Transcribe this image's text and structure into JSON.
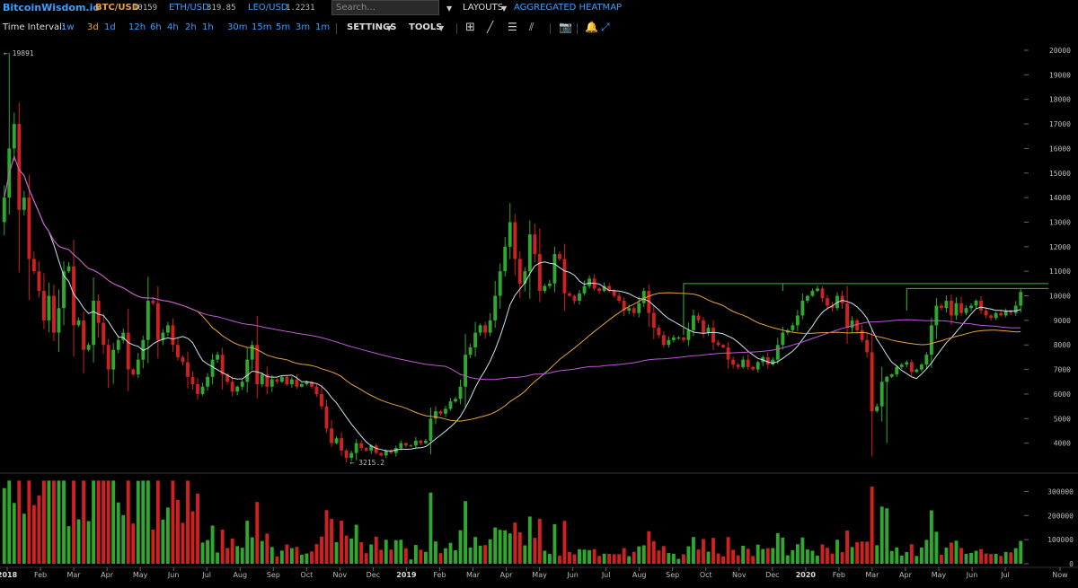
{
  "header": {
    "brand": "BitcoinWisdom.io",
    "tickers": [
      {
        "pair": "BTC/USD",
        "price": "10159"
      },
      {
        "pair": "ETH/USD",
        "price": "319.85"
      },
      {
        "pair": "LEO/USD",
        "price": "1.2231"
      }
    ],
    "search_placeholder": "Search...",
    "layouts_label": "LAYOUTS",
    "heatmap_label": "AGGREGATED HEATMAP"
  },
  "toolbar": {
    "time_interval_label": "Time Interval:",
    "intervals": [
      "1w",
      "3d",
      "1d",
      "12h",
      "6h",
      "4h",
      "2h",
      "1h",
      "30m",
      "15m",
      "5m",
      "3m",
      "1m"
    ],
    "active_interval": "3d",
    "settings_label": "SETTINGS",
    "tools_label": "TOOLS"
  },
  "chart_data": {
    "type": "candlestick",
    "pair": "BTC/USD",
    "interval": "3d",
    "colors": {
      "up": "#2fa82f",
      "down": "#d02020",
      "ma_short": "#c8e4f0",
      "ma_mid": "#e8a33a",
      "ma_long": "#c058d8",
      "resistance": "#3cb83c"
    },
    "price_axis": {
      "ticks": [
        20000,
        19000,
        18000,
        17000,
        16000,
        15000,
        14000,
        13000,
        12000,
        11000,
        10000,
        9000,
        8000,
        7000,
        6000,
        5000,
        4000
      ],
      "range": [
        3000,
        20000
      ]
    },
    "volume_axis": {
      "ticks": [
        300000,
        200000,
        100000,
        0
      ],
      "range": [
        0,
        350000
      ]
    },
    "time_labels": [
      "2018",
      "Feb",
      "Mar",
      "Apr",
      "May",
      "Jun",
      "Jul",
      "Aug",
      "Sep",
      "Oct",
      "Nov",
      "Dec",
      "2019",
      "Feb",
      "Mar",
      "Apr",
      "May",
      "Jun",
      "Jul",
      "Aug",
      "Sep",
      "Oct",
      "Nov",
      "Dec",
      "2020",
      "Feb",
      "Mar",
      "Apr",
      "May",
      "Jun",
      "Jul",
      "Now"
    ],
    "max_label": "← 19891",
    "min_label": "← 3215.2",
    "close_series": [
      14000,
      16000,
      17000,
      13500,
      14000,
      11500,
      11000,
      10200,
      9000,
      10000,
      8500,
      9500,
      11000,
      11200,
      8800,
      9000,
      7800,
      8000,
      9800,
      8900,
      8000,
      7000,
      7800,
      8200,
      8500,
      7000,
      6800,
      7400,
      8200,
      9800,
      9700,
      8200,
      8500,
      8800,
      8000,
      7500,
      7300,
      6700,
      6400,
      6000,
      6300,
      6700,
      7400,
      7600,
      6800,
      6500,
      6100,
      6300,
      6500,
      7400,
      8000,
      6400,
      6800,
      6300,
      6600,
      6500,
      6700,
      6400,
      6600,
      6300,
      6400,
      6500,
      6300,
      6000,
      5500,
      4600,
      4000,
      4200,
      3700,
      3400,
      3600,
      4000,
      3800,
      3700,
      3900,
      3600,
      3500,
      3700,
      3600,
      3800,
      4000,
      3900,
      3900,
      4100,
      4000,
      4100,
      5000,
      5300,
      5200,
      5400,
      5700,
      5800,
      6300,
      7600,
      7900,
      8500,
      8800,
      8500,
      9000,
      10000,
      11000,
      12000,
      13000,
      11500,
      10500,
      11000,
      12500,
      11700,
      10200,
      10400,
      10500,
      11700,
      11500,
      10100,
      10000,
      9800,
      10100,
      10400,
      10700,
      10300,
      10200,
      10400,
      10200,
      10000,
      9800,
      9400,
      9500,
      9300,
      9700,
      10200,
      9300,
      8700,
      8400,
      8000,
      8200,
      8300,
      8300,
      8200,
      8600,
      9200,
      9000,
      8500,
      8700,
      8100,
      8000,
      7900,
      7400,
      7200,
      7100,
      7400,
      7100,
      7000,
      7300,
      7500,
      7200,
      7400,
      8000,
      8500,
      8600,
      8800,
      9200,
      9800,
      10000,
      10200,
      10300,
      9900,
      9600,
      9500,
      10000,
      9700,
      8700,
      9000,
      8600,
      8200,
      7700,
      5300,
      5500,
      6500,
      6700,
      6800,
      7100,
      7200,
      7300,
      6900,
      7000,
      7200,
      7600,
      8800,
      9600,
      9500,
      9800,
      9200,
      9700,
      9300,
      9500,
      9600,
      9800,
      9400,
      9200,
      9100,
      9300,
      9200,
      9400,
      9300,
      9600,
      10159
    ]
  }
}
